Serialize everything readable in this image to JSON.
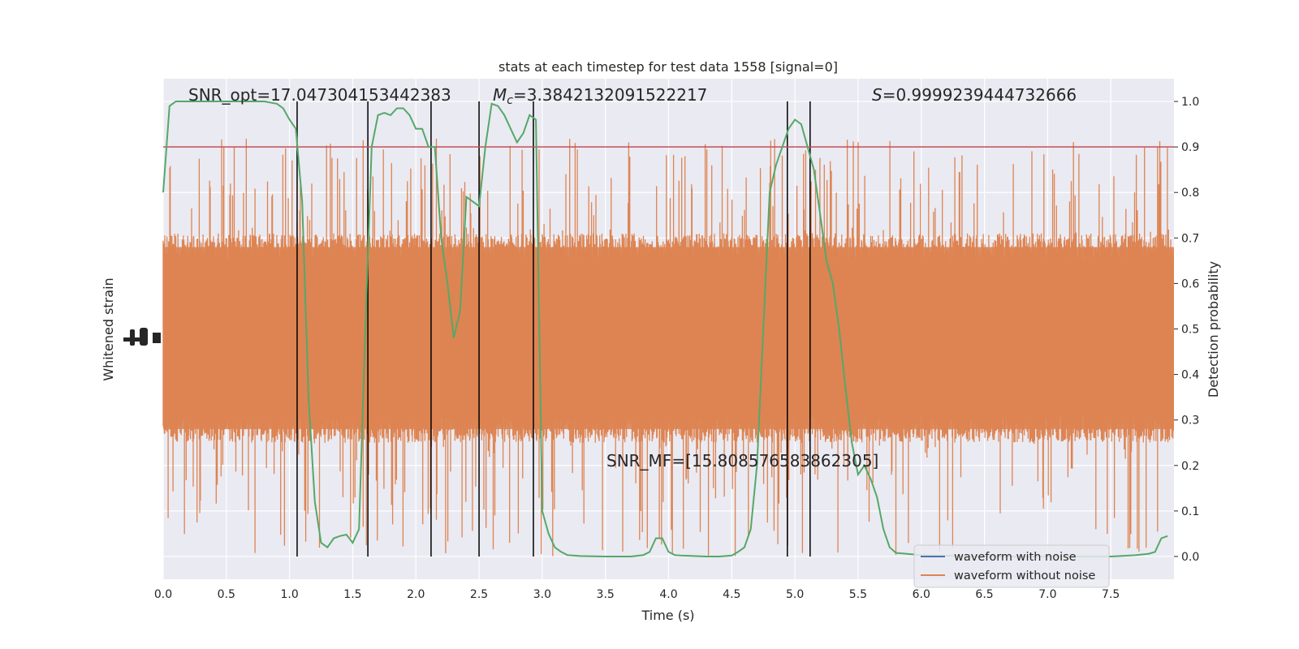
{
  "chart_data": {
    "type": "line",
    "title": "stats at each timestep for test data 1558 [signal=0]",
    "xlabel": "Time (s)",
    "ylabel_left": "Whitened strain",
    "ylabel_right": "Detection probability",
    "xlim": [
      0,
      8
    ],
    "ylim_right": [
      -0.05,
      1.05
    ],
    "x_ticks": [
      "0.0",
      "0.5",
      "1.0",
      "1.5",
      "2.0",
      "2.5",
      "3.0",
      "3.5",
      "4.0",
      "4.5",
      "5.0",
      "5.5",
      "6.0",
      "6.5",
      "7.0",
      "7.5"
    ],
    "x_tick_values": [
      0,
      0.5,
      1,
      1.5,
      2,
      2.5,
      3,
      3.5,
      4,
      4.5,
      5,
      5.5,
      6,
      6.5,
      7,
      7.5
    ],
    "y_right_ticks": [
      "0.0",
      "0.1",
      "0.2",
      "0.3",
      "0.4",
      "0.5",
      "0.6",
      "0.7",
      "0.8",
      "0.9",
      "1.0"
    ],
    "y_right_tick_values": [
      0,
      0.1,
      0.2,
      0.3,
      0.4,
      0.5,
      0.6,
      0.7,
      0.8,
      0.9,
      1.0
    ],
    "grid": true,
    "threshold": 0.9,
    "vertical_lines": [
      1.06,
      1.62,
      2.12,
      2.5,
      2.93,
      4.94,
      5.12
    ],
    "annotations": {
      "snr_opt": "SNR_opt=17.047304153442383",
      "mc_symbol": "M",
      "mc_sub": "c",
      "mc_value": "=3.3842132091522217",
      "s_symbol": "S",
      "s_value": "=0.9999239444732666",
      "snr_mf": "SNR_MF=[15.808576583862305]"
    },
    "legend": {
      "placement": "lower-right",
      "entries": [
        "waveform with noise",
        "waveform without noise"
      ]
    },
    "series": [
      {
        "name": "waveform with noise",
        "color": "#4c72b0",
        "values": []
      },
      {
        "name": "waveform without noise",
        "color": "#dd8452",
        "noise_center": 0.47,
        "noise_band": [
          0.28,
          0.68
        ],
        "noise_extremes": [
          0.0,
          0.92
        ]
      },
      {
        "color": "#55a868",
        "x": [
          0,
          0.05,
          0.1,
          0.2,
          0.3,
          0.5,
          0.7,
          0.8,
          0.9,
          0.95,
          1.0,
          1.05,
          1.1,
          1.15,
          1.2,
          1.25,
          1.3,
          1.35,
          1.4,
          1.45,
          1.5,
          1.55,
          1.6,
          1.65,
          1.7,
          1.75,
          1.8,
          1.85,
          1.9,
          1.95,
          2.0,
          2.05,
          2.1,
          2.15,
          2.2,
          2.25,
          2.3,
          2.35,
          2.4,
          2.45,
          2.5,
          2.55,
          2.6,
          2.65,
          2.7,
          2.75,
          2.8,
          2.85,
          2.9,
          2.95,
          3.0,
          3.05,
          3.1,
          3.15,
          3.2,
          3.3,
          3.5,
          3.7,
          3.8,
          3.85,
          3.9,
          3.95,
          4.0,
          4.05,
          4.1,
          4.3,
          4.4,
          4.5,
          4.55,
          4.6,
          4.65,
          4.7,
          4.75,
          4.8,
          4.85,
          4.9,
          4.95,
          5.0,
          5.05,
          5.1,
          5.15,
          5.2,
          5.25,
          5.3,
          5.35,
          5.4,
          5.45,
          5.5,
          5.55,
          5.6,
          5.65,
          5.7,
          5.75,
          5.8,
          6.0,
          6.5,
          7.0,
          7.5,
          7.7,
          7.8,
          7.85,
          7.9,
          7.95
        ],
        "values": [
          0.8,
          0.99,
          1.0,
          1.0,
          1.0,
          1.0,
          1.0,
          1.0,
          0.995,
          0.985,
          0.96,
          0.94,
          0.78,
          0.35,
          0.12,
          0.03,
          0.02,
          0.04,
          0.045,
          0.048,
          0.03,
          0.06,
          0.5,
          0.9,
          0.97,
          0.975,
          0.97,
          0.985,
          0.985,
          0.97,
          0.94,
          0.94,
          0.9,
          0.9,
          0.7,
          0.6,
          0.48,
          0.54,
          0.79,
          0.78,
          0.77,
          0.9,
          0.995,
          0.99,
          0.97,
          0.94,
          0.91,
          0.93,
          0.97,
          0.96,
          0.1,
          0.05,
          0.02,
          0.01,
          0.003,
          0.001,
          0.0,
          0.0,
          0.003,
          0.01,
          0.04,
          0.04,
          0.01,
          0.003,
          0.002,
          0.0,
          0.0,
          0.002,
          0.01,
          0.02,
          0.06,
          0.2,
          0.5,
          0.8,
          0.86,
          0.9,
          0.94,
          0.96,
          0.95,
          0.9,
          0.85,
          0.75,
          0.65,
          0.6,
          0.5,
          0.37,
          0.25,
          0.18,
          0.2,
          0.17,
          0.13,
          0.06,
          0.02,
          0.008,
          0.003,
          0.0,
          0.0,
          0.0,
          0.003,
          0.006,
          0.01,
          0.04,
          0.045
        ]
      }
    ]
  }
}
